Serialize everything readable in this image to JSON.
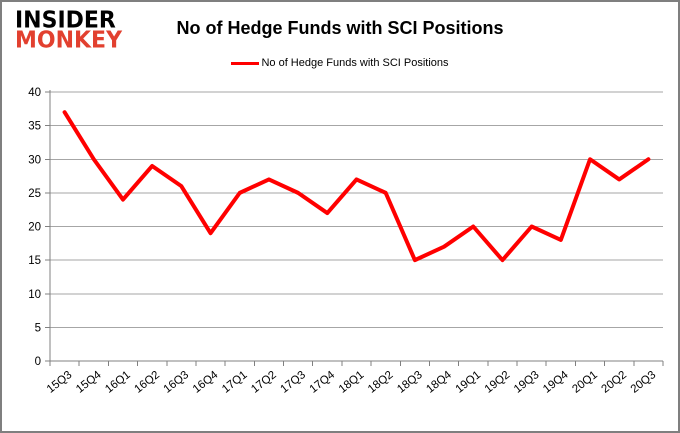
{
  "logo": {
    "line1": "INSIDER",
    "line2": "MONKEY"
  },
  "header": {
    "title": "No of Hedge Funds with SCI Positions"
  },
  "legend": {
    "label": "No of Hedge Funds with SCI Positions"
  },
  "colors": {
    "series": "#ff0000",
    "logo_accent": "#e2402f",
    "grid": "#a6a6a6",
    "axis": "#808080",
    "text": "#000000",
    "border": "#7f7f7f"
  },
  "chart_data": {
    "type": "line",
    "title": "No of Hedge Funds with SCI Positions",
    "categories": [
      "15Q3",
      "15Q4",
      "16Q1",
      "16Q2",
      "16Q3",
      "16Q4",
      "17Q1",
      "17Q2",
      "17Q3",
      "17Q4",
      "18Q1",
      "18Q2",
      "18Q3",
      "18Q4",
      "19Q1",
      "19Q2",
      "19Q3",
      "19Q4",
      "20Q1",
      "20Q2",
      "20Q3"
    ],
    "values": [
      37,
      30,
      24,
      29,
      26,
      19,
      25,
      27,
      25,
      22,
      27,
      25,
      15,
      17,
      20,
      15,
      20,
      18,
      30,
      27,
      30
    ],
    "xlabel": "",
    "ylabel": "",
    "ylim": [
      0,
      40
    ],
    "ytick_step": 5,
    "grid": true,
    "legend_position": "top-center",
    "series_color": "#ff0000"
  }
}
